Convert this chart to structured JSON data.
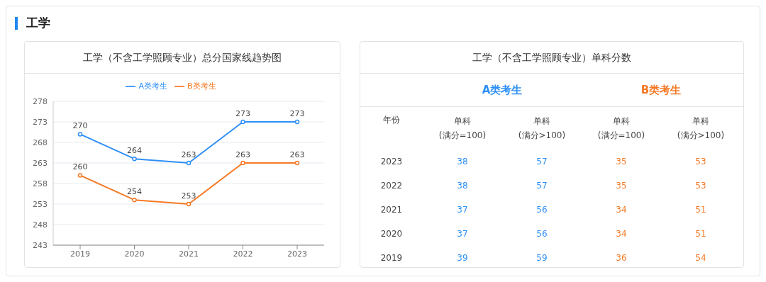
{
  "chart_data": [
    {
      "type": "line",
      "title": "工学（不含工学照顾专业）总分国家线趋势图",
      "annotations": [
        "工学"
      ],
      "categories": [
        "2019",
        "2020",
        "2021",
        "2022",
        "2023"
      ],
      "series": [
        {
          "name": "A类考生",
          "color": "#2e90f6",
          "values": [
            270,
            264,
            263,
            273,
            273
          ]
        },
        {
          "name": "B类考生",
          "color": "#f57a26",
          "values": [
            260,
            254,
            253,
            263,
            263
          ]
        }
      ],
      "ylim": [
        243,
        278
      ],
      "yticks": [
        243,
        248,
        253,
        258,
        263,
        268,
        273,
        278
      ],
      "grid": "y",
      "legend": "top",
      "marker": "circle",
      "data_labels": true
    },
    {
      "type": "heatmap",
      "title": "工学（不含工学照顾专业）单科分数",
      "annotations": [
        "年份",
        "A类考生",
        "B类考生"
      ],
      "categories": [
        "单科\n(满分=100)",
        "单科\n(满分>100)",
        "单科\n(满分=100)",
        "单科\n(满分>100)"
      ],
      "colors": [
        "#2e90f6",
        "#2e90f6",
        "#f57a26",
        "#f57a26"
      ],
      "y_categories": [
        "2023",
        "2022",
        "2021",
        "2020",
        "2019"
      ],
      "cells": [
        [
          38,
          57,
          35,
          53
        ],
        [
          38,
          57,
          35,
          53
        ],
        [
          37,
          56,
          34,
          51
        ],
        [
          37,
          56,
          34,
          51
        ],
        [
          39,
          59,
          36,
          54
        ]
      ],
      "data_labels": true
    }
  ]
}
